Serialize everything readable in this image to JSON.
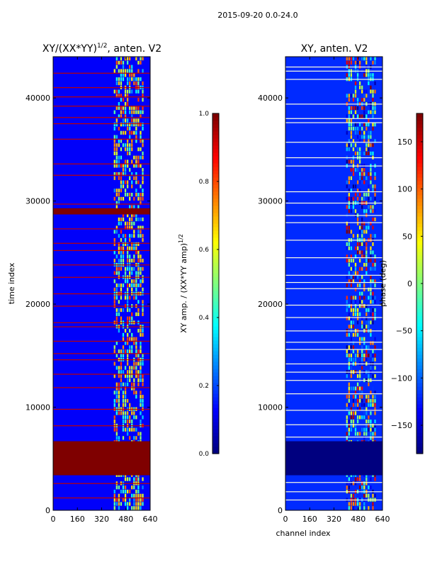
{
  "suptitle": "2015-09-20 0.0-24.0",
  "colors": {
    "jet": [
      "#00007f",
      "#0000ff",
      "#007fff",
      "#00ffff",
      "#7fff7f",
      "#ffff00",
      "#ff7f00",
      "#ff0000",
      "#7f0000"
    ],
    "axis": "#000000",
    "frame": "#000000"
  },
  "chart_data": [
    {
      "type": "heatmap",
      "title_main": "XY/(XX*YY)",
      "title_exp": "1/2",
      "title_tail": ", anten. V2",
      "xlabel": "",
      "ylabel": "time index",
      "xlim": [
        0,
        640
      ],
      "ylim": [
        0,
        44000
      ],
      "xticks": [
        0,
        160,
        320,
        480,
        640
      ],
      "yticks": [
        0,
        10000,
        20000,
        30000,
        40000
      ],
      "colorbar": {
        "label_main": "XY amp. / (XX*YY amp)",
        "label_exp": "1/2",
        "range": [
          0.0,
          1.0
        ],
        "ticks": [
          0.0,
          0.2,
          0.4,
          0.6,
          0.8,
          1.0
        ],
        "tick_labels": [
          "0.0",
          "0.2",
          "0.4",
          "0.6",
          "0.8",
          "1.0"
        ]
      },
      "background_value": 0.12,
      "active_channel_band": [
        400,
        600
      ],
      "saturated_time_bands": [
        [
          3400,
          6700
        ],
        [
          28700,
          29300
        ]
      ],
      "flagged_time_rows": [
        1200,
        2600,
        8200,
        9800,
        11900,
        13200,
        14600,
        15200,
        16400,
        17800,
        18200,
        19800,
        21000,
        22600,
        23800,
        25200,
        25900,
        27300,
        29700,
        32500,
        33600,
        36000,
        37500,
        38100,
        39200,
        40100,
        41000,
        42400
      ]
    },
    {
      "type": "heatmap",
      "title_main": "XY, anten. V2",
      "title_exp": "",
      "title_tail": "",
      "xlabel": "channel index",
      "ylabel": "",
      "xlim": [
        0,
        640
      ],
      "ylim": [
        0,
        44000
      ],
      "xticks": [
        0,
        160,
        320,
        480,
        640
      ],
      "yticks": [
        0,
        10000,
        20000,
        30000,
        40000
      ],
      "colorbar": {
        "label_main": "phase (deg)",
        "label_exp": "",
        "range": [
          -180,
          180
        ],
        "ticks": [
          -150,
          -100,
          -50,
          0,
          50,
          100,
          150
        ],
        "tick_labels": [
          "−150",
          "−100",
          "−50",
          "0",
          "50",
          "100",
          "150"
        ]
      },
      "background_value": -120,
      "active_channel_band": [
        400,
        600
      ],
      "saturated_time_bands": [
        [
          3400,
          6700
        ]
      ],
      "flagged_time_rows": [
        1000,
        1800,
        2700,
        7100,
        8300,
        9700,
        11300,
        12600,
        13400,
        14200,
        15600,
        16300,
        17400,
        18700,
        19900,
        21500,
        22100,
        22800,
        24500,
        26200,
        27900,
        28600,
        29800,
        30900,
        33400,
        34200,
        35700,
        37600,
        38000,
        39400,
        41800,
        42600,
        43000
      ]
    }
  ]
}
